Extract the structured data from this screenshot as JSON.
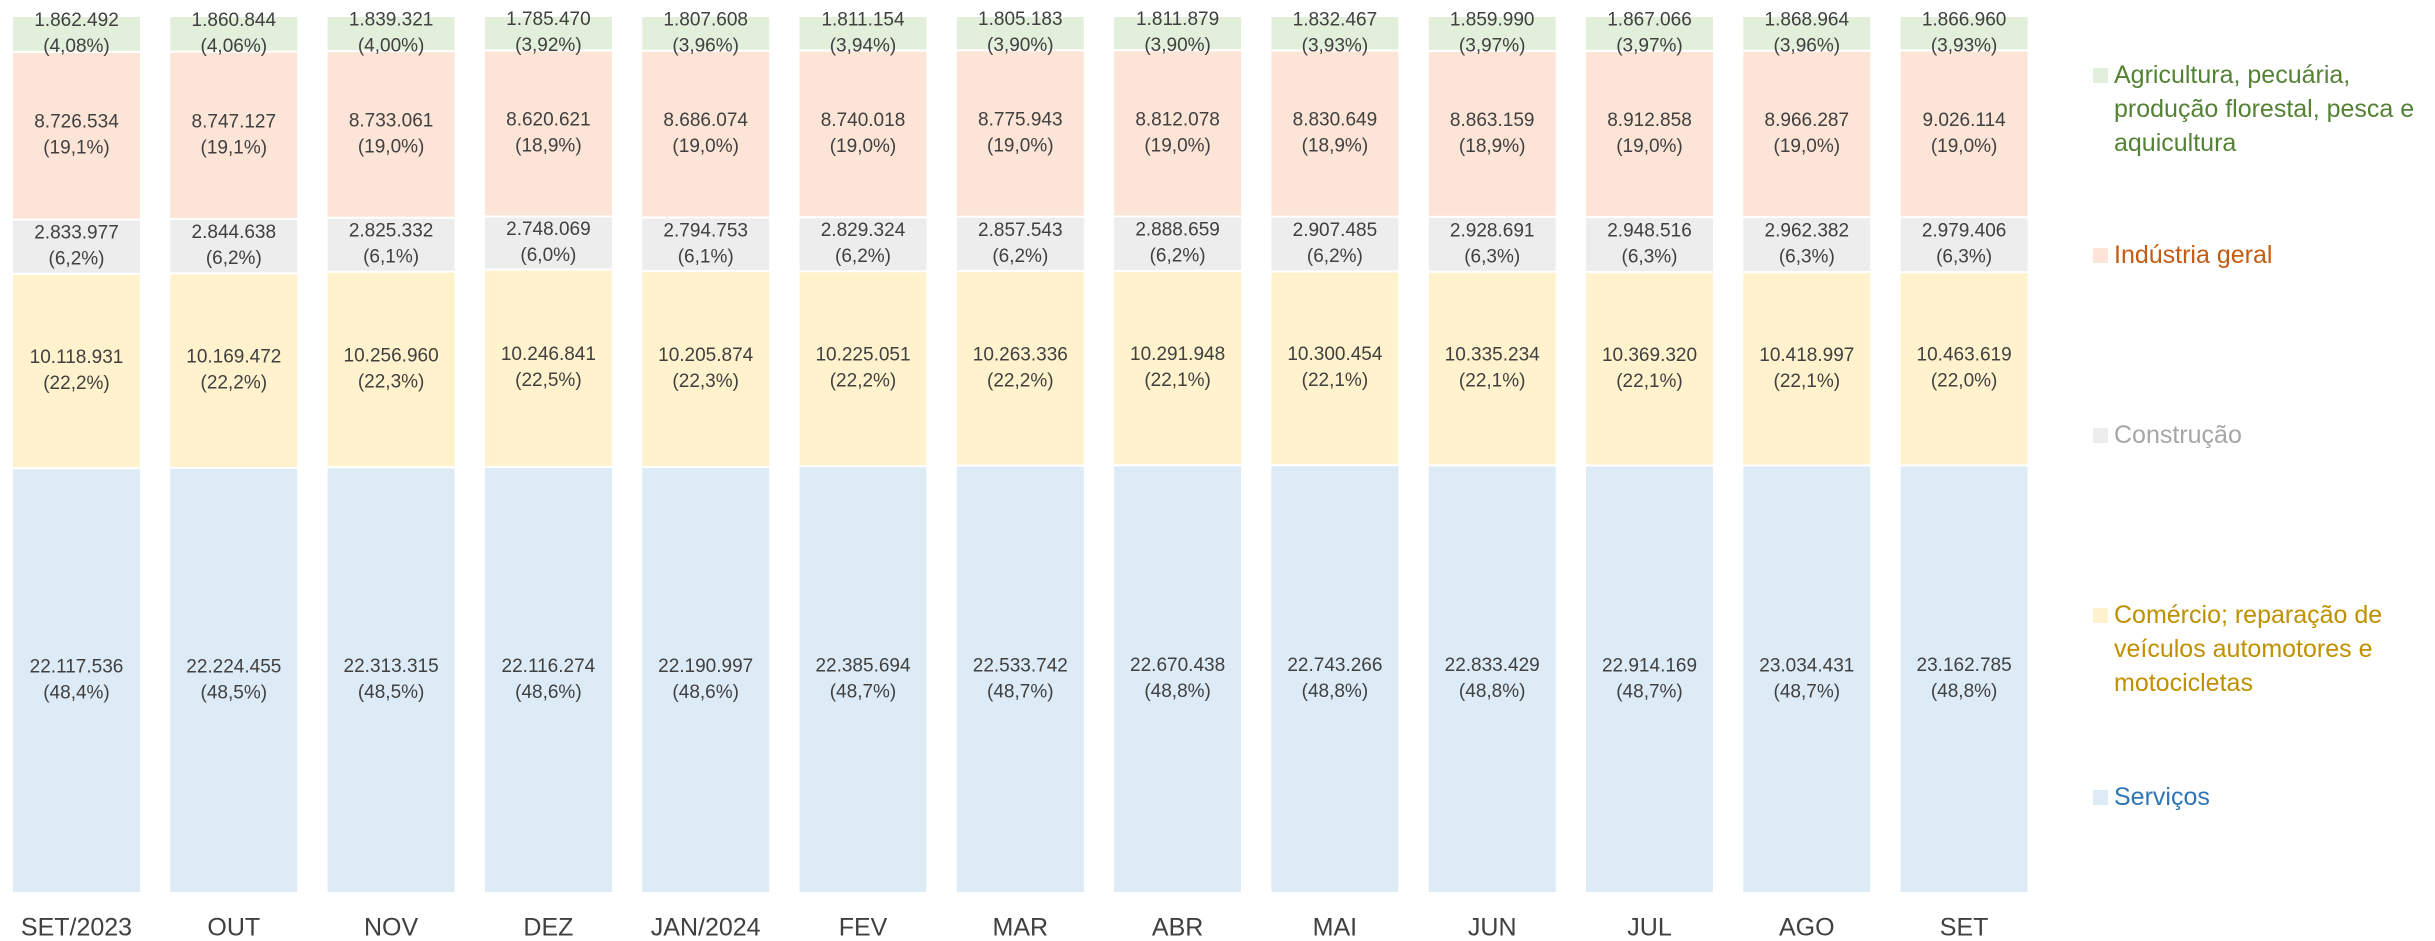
{
  "chart_data": {
    "type": "stacked_bar_100",
    "categories": [
      "SET/2023",
      "OUT",
      "NOV",
      "DEZ",
      "JAN/2024",
      "FEV",
      "MAR",
      "ABR",
      "MAI",
      "JUN",
      "JUL",
      "AGO",
      "SET"
    ],
    "legend": "right",
    "series": [
      {
        "name": "Agricultura, pecuária, produção florestal, pesca e aquicultura",
        "color": "#e2efda",
        "label_color": "#548235",
        "values": [
          1862492,
          1860844,
          1839321,
          1785470,
          1807608,
          1811154,
          1805183,
          1811879,
          1832467,
          1859990,
          1867066,
          1868964,
          1866960
        ],
        "value_labels": [
          "1.862.492",
          "1.860.844",
          "1.839.321",
          "1.785.470",
          "1.807.608",
          "1.811.154",
          "1.805.183",
          "1.811.879",
          "1.832.467",
          "1.859.990",
          "1.867.066",
          "1.868.964",
          "1.866.960"
        ],
        "shares": [
          4.08,
          4.06,
          4.0,
          3.92,
          3.96,
          3.94,
          3.9,
          3.9,
          3.93,
          3.97,
          3.97,
          3.96,
          3.93
        ],
        "share_labels": [
          "(4,08%)",
          "(4,06%)",
          "(4,00%)",
          "(3,92%)",
          "(3,96%)",
          "(3,94%)",
          "(3,90%)",
          "(3,90%)",
          "(3,93%)",
          "(3,97%)",
          "(3,97%)",
          "(3,96%)",
          "(3,93%)"
        ]
      },
      {
        "name": "Indústria geral",
        "color": "#fce4d6",
        "label_color": "#c55a11",
        "values": [
          8726534,
          8747127,
          8733061,
          8620621,
          8686074,
          8740018,
          8775943,
          8812078,
          8830649,
          8863159,
          8912858,
          8966287,
          9026114
        ],
        "value_labels": [
          "8.726.534",
          "8.747.127",
          "8.733.061",
          "8.620.621",
          "8.686.074",
          "8.740.018",
          "8.775.943",
          "8.812.078",
          "8.830.649",
          "8.863.159",
          "8.912.858",
          "8.966.287",
          "9.026.114"
        ],
        "shares": [
          19.1,
          19.1,
          19.0,
          18.9,
          19.0,
          19.0,
          19.0,
          19.0,
          18.9,
          18.9,
          19.0,
          19.0,
          19.0
        ],
        "share_labels": [
          "(19,1%)",
          "(19,1%)",
          "(19,0%)",
          "(18,9%)",
          "(19,0%)",
          "(19,0%)",
          "(19,0%)",
          "(19,0%)",
          "(18,9%)",
          "(18,9%)",
          "(19,0%)",
          "(19,0%)",
          "(19,0%)"
        ]
      },
      {
        "name": "Construção",
        "color": "#ededed",
        "label_color": "#a6a6a6",
        "values": [
          2833977,
          2844638,
          2825332,
          2748069,
          2794753,
          2829324,
          2857543,
          2888659,
          2907485,
          2928691,
          2948516,
          2962382,
          2979406
        ],
        "value_labels": [
          "2.833.977",
          "2.844.638",
          "2.825.332",
          "2.748.069",
          "2.794.753",
          "2.829.324",
          "2.857.543",
          "2.888.659",
          "2.907.485",
          "2.928.691",
          "2.948.516",
          "2.962.382",
          "2.979.406"
        ],
        "shares": [
          6.2,
          6.2,
          6.1,
          6.0,
          6.1,
          6.2,
          6.2,
          6.2,
          6.2,
          6.3,
          6.3,
          6.3,
          6.3
        ],
        "share_labels": [
          "(6,2%)",
          "(6,2%)",
          "(6,1%)",
          "(6,0%)",
          "(6,1%)",
          "(6,2%)",
          "(6,2%)",
          "(6,2%)",
          "(6,2%)",
          "(6,3%)",
          "(6,3%)",
          "(6,3%)",
          "(6,3%)"
        ]
      },
      {
        "name": "Comércio; reparação de veículos automotores e motocicletas",
        "color": "#fff2cc",
        "label_color": "#bf9000",
        "values": [
          10118931,
          10169472,
          10256960,
          10246841,
          10205874,
          10225051,
          10263336,
          10291948,
          10300454,
          10335234,
          10369320,
          10418997,
          10463619
        ],
        "value_labels": [
          "10.118.931",
          "10.169.472",
          "10.256.960",
          "10.246.841",
          "10.205.874",
          "10.225.051",
          "10.263.336",
          "10.291.948",
          "10.300.454",
          "10.335.234",
          "10.369.320",
          "10.418.997",
          "10.463.619"
        ],
        "shares": [
          22.2,
          22.2,
          22.3,
          22.5,
          22.3,
          22.2,
          22.2,
          22.1,
          22.1,
          22.1,
          22.1,
          22.1,
          22.0
        ],
        "share_labels": [
          "(22,2%)",
          "(22,2%)",
          "(22,3%)",
          "(22,5%)",
          "(22,3%)",
          "(22,2%)",
          "(22,2%)",
          "(22,1%)",
          "(22,1%)",
          "(22,1%)",
          "(22,1%)",
          "(22,1%)",
          "(22,0%)"
        ]
      },
      {
        "name": "Serviços",
        "color": "#ddebf7",
        "label_color": "#2e75b6",
        "values": [
          22117536,
          22224455,
          22313315,
          22116274,
          22190997,
          22385694,
          22533742,
          22670438,
          22743266,
          22833429,
          22914169,
          23034431,
          23162785
        ],
        "value_labels": [
          "22.117.536",
          "22.224.455",
          "22.313.315",
          "22.116.274",
          "22.190.997",
          "22.385.694",
          "22.533.742",
          "22.670.438",
          "22.743.266",
          "22.833.429",
          "22.914.169",
          "23.034.431",
          "23.162.785"
        ],
        "shares": [
          48.4,
          48.5,
          48.5,
          48.6,
          48.6,
          48.7,
          48.7,
          48.8,
          48.8,
          48.8,
          48.7,
          48.7,
          48.8
        ],
        "share_labels": [
          "(48,4%)",
          "(48,5%)",
          "(48,5%)",
          "(48,6%)",
          "(48,6%)",
          "(48,7%)",
          "(48,7%)",
          "(48,8%)",
          "(48,8%)",
          "(48,8%)",
          "(48,7%)",
          "(48,7%)",
          "(48,8%)"
        ]
      }
    ]
  }
}
